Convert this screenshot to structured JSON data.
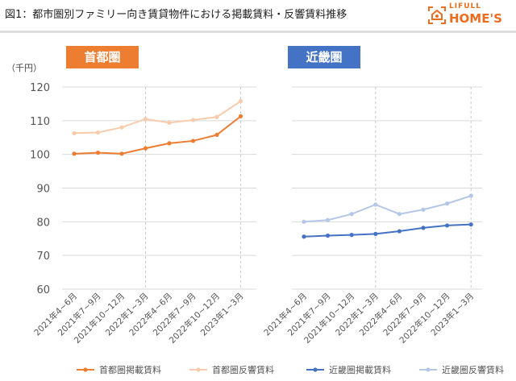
{
  "title": "図1：都市圏別ファミリー向き賃貸物件における掲載賃料・反響賃料推移",
  "logo": {
    "line1": "LIFULL",
    "line2": "HOME'S"
  },
  "unit": "（千円）",
  "chart_data": [
    {
      "type": "line",
      "title": "首都圏",
      "title_color": "#ed7d31",
      "categories": [
        "2021年4~6月",
        "2021年7~9月",
        "2021年10~12月",
        "2022年1~3月",
        "2022年4~6月",
        "2022年7~9月",
        "2022年10~12月",
        "2023年1~3月"
      ],
      "ylim": [
        60,
        120
      ],
      "yticks": [
        60,
        70,
        80,
        90,
        100,
        110,
        120
      ],
      "legend": "bottom",
      "series": [
        {
          "name": "首都圏掲載賃料",
          "color": "#ed7d31",
          "values": [
            100.2,
            100.5,
            100.2,
            101.8,
            103.3,
            104.0,
            105.8,
            111.3
          ]
        },
        {
          "name": "首都圏反響賃料",
          "color": "#f8cbad",
          "values": [
            106.3,
            106.5,
            108.0,
            110.5,
            109.4,
            110.2,
            111.1,
            115.8
          ]
        }
      ]
    },
    {
      "type": "line",
      "title": "近畿圏",
      "title_color": "#4472c4",
      "categories": [
        "2021年4~6月",
        "2021年7~9月",
        "2021年10~12月",
        "2022年1~3月",
        "2022年4~6月",
        "2022年7~9月",
        "2022年10~12月",
        "2023年1~3月"
      ],
      "ylim": [
        60,
        120
      ],
      "legend": "bottom",
      "series": [
        {
          "name": "近畿圏掲載賃料",
          "color": "#4472c4",
          "values": [
            75.6,
            75.9,
            76.1,
            76.4,
            77.2,
            78.2,
            78.9,
            79.2
          ]
        },
        {
          "name": "近畿圏反響賃料",
          "color": "#b4c7e7",
          "values": [
            80.0,
            80.5,
            82.3,
            85.1,
            82.3,
            83.6,
            85.4,
            87.7
          ]
        }
      ]
    }
  ]
}
